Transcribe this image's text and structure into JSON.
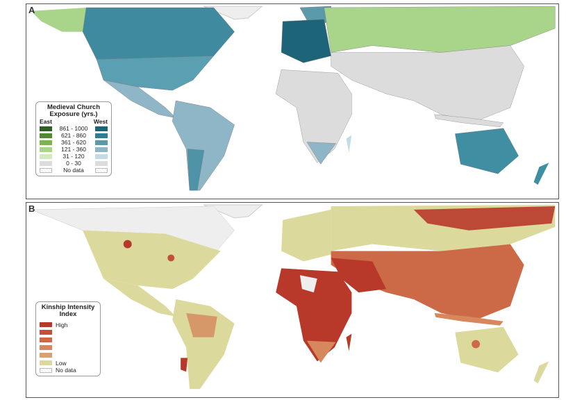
{
  "panel_a": {
    "label": "A",
    "legend": {
      "title": "Medieval Church Exposure (yrs.)",
      "east_label": "East",
      "west_label": "West",
      "rows": [
        {
          "range": "861 - 1000",
          "east": "#2f5e22",
          "west": "#1d6478"
        },
        {
          "range": "621 - 860",
          "east": "#4f8a32",
          "west": "#2e7d90"
        },
        {
          "range": "361 - 620",
          "east": "#79b74e",
          "west": "#5a9aaa"
        },
        {
          "range": "121 - 360",
          "east": "#a8d58a",
          "west": "#8fb6c6"
        },
        {
          "range": "31 - 120",
          "east": "#d3eac0",
          "west": "#c3dbe6"
        },
        {
          "range": "0 - 30",
          "east": "#dcdcdc",
          "west": "#dcdcdc"
        },
        {
          "range": "No data",
          "east": "nodata",
          "west": "nodata"
        }
      ]
    }
  },
  "panel_b": {
    "label": "B",
    "legend": {
      "title": "Kinship Intensity Index",
      "high_label": "High",
      "low_label": "Low",
      "nodata_label": "No data",
      "colors": [
        "#b8382a",
        "#c4503a",
        "#cc6a48",
        "#d6875c",
        "#dba072",
        "#dcd99c"
      ]
    }
  }
}
